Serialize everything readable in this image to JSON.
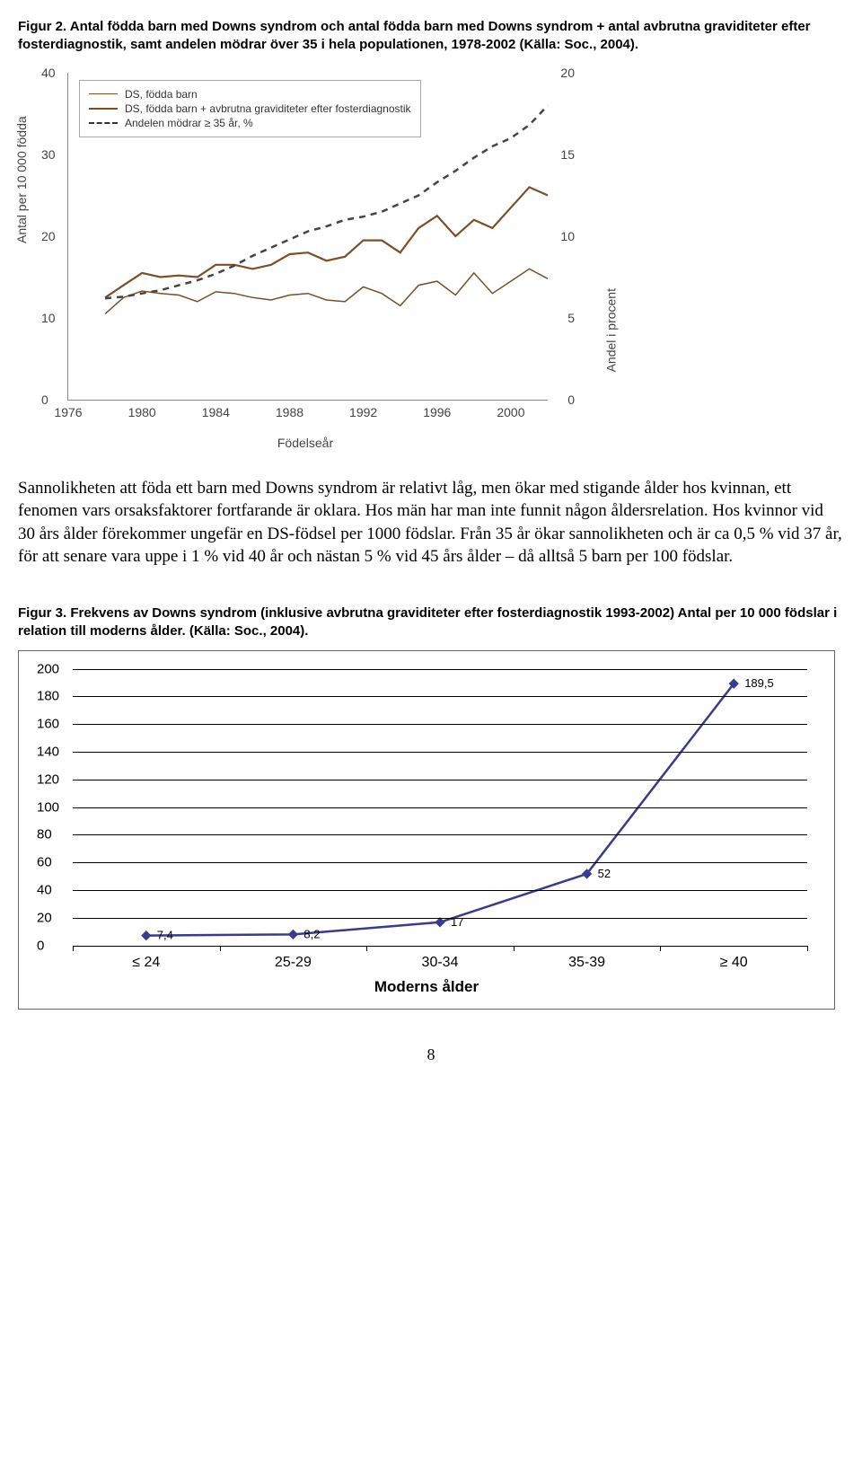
{
  "figure2": {
    "caption": "Figur 2. Antal födda barn med Downs syndrom och antal födda barn med Downs syndrom + antal avbrutna graviditeter efter fosterdiagnostik, samt andelen mödrar över 35 i hela populationen, 1978-2002 (Källa: Soc., 2004).",
    "y_label_left": "Antal per 10 000 födda",
    "y_label_right": "Andel i procent",
    "x_label": "Födelseår",
    "y_left_ticks": [
      0,
      10,
      20,
      30,
      40
    ],
    "y_right_ticks": [
      0,
      5,
      10,
      15,
      20
    ],
    "x_ticks": [
      1976,
      1980,
      1984,
      1988,
      1992,
      1996,
      2000
    ],
    "x_min": 1976,
    "x_max": 2002,
    "y_left_max": 40,
    "y_right_max": 20,
    "legend": [
      "DS, födda barn",
      "DS, födda barn + avbrutna graviditeter efter fosterdiagnostik",
      "Andelen mödrar ≥ 35 år, %"
    ],
    "series_ds": [
      {
        "x": 1978,
        "y": 10.5
      },
      {
        "x": 1979,
        "y": 12.5
      },
      {
        "x": 1980,
        "y": 13.3
      },
      {
        "x": 1981,
        "y": 13.0
      },
      {
        "x": 1982,
        "y": 12.8
      },
      {
        "x": 1983,
        "y": 12.0
      },
      {
        "x": 1984,
        "y": 13.2
      },
      {
        "x": 1985,
        "y": 13.0
      },
      {
        "x": 1986,
        "y": 12.5
      },
      {
        "x": 1987,
        "y": 12.2
      },
      {
        "x": 1988,
        "y": 12.8
      },
      {
        "x": 1989,
        "y": 13.0
      },
      {
        "x": 1990,
        "y": 12.2
      },
      {
        "x": 1991,
        "y": 12.0
      },
      {
        "x": 1992,
        "y": 13.8
      },
      {
        "x": 1993,
        "y": 13.0
      },
      {
        "x": 1994,
        "y": 11.5
      },
      {
        "x": 1995,
        "y": 14.0
      },
      {
        "x": 1996,
        "y": 14.5
      },
      {
        "x": 1997,
        "y": 12.8
      },
      {
        "x": 1998,
        "y": 15.5
      },
      {
        "x": 1999,
        "y": 13.0
      },
      {
        "x": 2000,
        "y": 14.5
      },
      {
        "x": 2001,
        "y": 16.0
      },
      {
        "x": 2002,
        "y": 14.8
      }
    ],
    "series_ds_ab": [
      {
        "x": 1978,
        "y": 12.5
      },
      {
        "x": 1979,
        "y": 14.0
      },
      {
        "x": 1980,
        "y": 15.5
      },
      {
        "x": 1981,
        "y": 15.0
      },
      {
        "x": 1982,
        "y": 15.2
      },
      {
        "x": 1983,
        "y": 15.0
      },
      {
        "x": 1984,
        "y": 16.5
      },
      {
        "x": 1985,
        "y": 16.5
      },
      {
        "x": 1986,
        "y": 16.0
      },
      {
        "x": 1987,
        "y": 16.5
      },
      {
        "x": 1988,
        "y": 17.8
      },
      {
        "x": 1989,
        "y": 18.0
      },
      {
        "x": 1990,
        "y": 17.0
      },
      {
        "x": 1991,
        "y": 17.5
      },
      {
        "x": 1992,
        "y": 19.5
      },
      {
        "x": 1993,
        "y": 19.5
      },
      {
        "x": 1994,
        "y": 18.0
      },
      {
        "x": 1995,
        "y": 21.0
      },
      {
        "x": 1996,
        "y": 22.5
      },
      {
        "x": 1997,
        "y": 20.0
      },
      {
        "x": 1998,
        "y": 22.0
      },
      {
        "x": 1999,
        "y": 21.0
      },
      {
        "x": 2000,
        "y": 23.5
      },
      {
        "x": 2001,
        "y": 26.0
      },
      {
        "x": 2002,
        "y": 25.0
      }
    ],
    "series_pct": [
      {
        "x": 1978,
        "y": 6.2
      },
      {
        "x": 1979,
        "y": 6.3
      },
      {
        "x": 1980,
        "y": 6.5
      },
      {
        "x": 1981,
        "y": 6.7
      },
      {
        "x": 1982,
        "y": 7.0
      },
      {
        "x": 1983,
        "y": 7.3
      },
      {
        "x": 1984,
        "y": 7.7
      },
      {
        "x": 1985,
        "y": 8.2
      },
      {
        "x": 1986,
        "y": 8.8
      },
      {
        "x": 1987,
        "y": 9.3
      },
      {
        "x": 1988,
        "y": 9.8
      },
      {
        "x": 1989,
        "y": 10.3
      },
      {
        "x": 1990,
        "y": 10.6
      },
      {
        "x": 1991,
        "y": 11.0
      },
      {
        "x": 1992,
        "y": 11.2
      },
      {
        "x": 1993,
        "y": 11.5
      },
      {
        "x": 1994,
        "y": 12.0
      },
      {
        "x": 1995,
        "y": 12.5
      },
      {
        "x": 1996,
        "y": 13.3
      },
      {
        "x": 1997,
        "y": 14.0
      },
      {
        "x": 1998,
        "y": 14.8
      },
      {
        "x": 1999,
        "y": 15.5
      },
      {
        "x": 2000,
        "y": 16.0
      },
      {
        "x": 2001,
        "y": 16.8
      },
      {
        "x": 2002,
        "y": 18.0
      }
    ],
    "line_color": "#7a4f2a",
    "dash_color": "#444"
  },
  "paragraph": "Sannolikheten att föda ett barn med Downs syndrom är relativt låg, men ökar med stigande ålder hos kvinnan, ett fenomen vars orsaksfaktorer fortfarande är oklara. Hos män har man inte funnit någon åldersrelation. Hos kvinnor vid 30 års ålder förekommer ungefär en DS-födsel per 1000 födslar. Från 35 år ökar sannolikheten och är ca 0,5 % vid 37 år, för att senare vara uppe i 1 % vid 40 år och nästan 5 % vid 45 års ålder – då alltså 5 barn per 100 födslar.",
  "figure3": {
    "caption": "Figur 3. Frekvens av Downs syndrom (inklusive avbrutna graviditeter efter fosterdiagnostik 1993-2002) Antal per 10 000 födslar i relation till moderns ålder. (Källa: Soc., 2004).",
    "y_ticks": [
      0,
      20,
      40,
      60,
      80,
      100,
      120,
      140,
      160,
      180,
      200
    ],
    "y_max": 200,
    "x_label": "Moderns ålder",
    "categories": [
      "≤ 24",
      "25-29",
      "30-34",
      "35-39",
      "≥ 40"
    ],
    "values": [
      7.4,
      8.2,
      17,
      52,
      189.5
    ],
    "value_labels": [
      "7,4",
      "8,2",
      "17",
      "52",
      "189,5"
    ],
    "line_color": "#3a3a8f",
    "marker_color": "#3a3a8f",
    "grid_color": "#000000"
  },
  "page_number": "8"
}
